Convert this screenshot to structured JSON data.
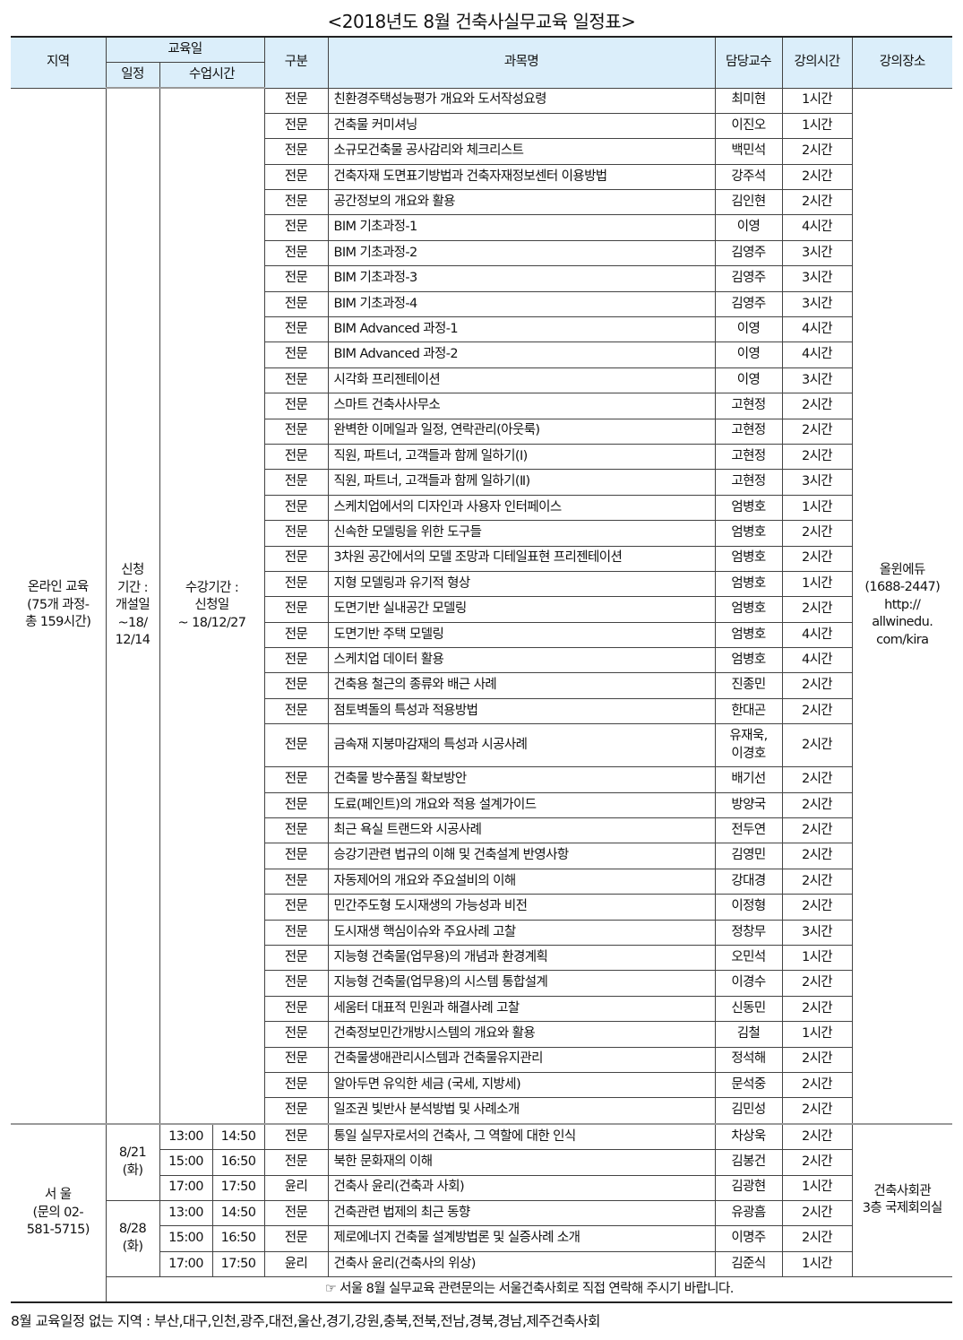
{
  "title": "<2018년도 8월 건축사실무교육 일정표>",
  "headers": {
    "region": "지역",
    "edu_day": "교육일",
    "schedule": "일정",
    "class_time": "수업시간",
    "category": "구분",
    "course": "과목명",
    "instructor": "담당교수",
    "hours": "강의시간",
    "venue": "강의장소"
  },
  "online": {
    "region": "온라인 교육\n(75개 과정-\n총 159시간)",
    "schedule": "신청\n기간 :\n개설일\n~18/\n12/14",
    "class_time": "수강기간 :\n신청일\n~ 18/12/27",
    "venue": "올윈에듀\n(1688-2447)\nhttp://\nallwinedu.\ncom/kira",
    "rows": [
      {
        "cat": "전문",
        "course": "친환경주택성능평가 개요와 도서작성요령",
        "inst": "최미현",
        "hours": "1시간"
      },
      {
        "cat": "전문",
        "course": "건축물 커미셔닝",
        "inst": "이진오",
        "hours": "1시간"
      },
      {
        "cat": "전문",
        "course": "소규모건축물 공사감리와 체크리스트",
        "inst": "백민석",
        "hours": "2시간"
      },
      {
        "cat": "전문",
        "course": "건축자재 도면표기방법과 건축자재정보센터 이용방법",
        "inst": "강주석",
        "hours": "2시간"
      },
      {
        "cat": "전문",
        "course": "공간정보의 개요와 활용",
        "inst": "김인현",
        "hours": "2시간"
      },
      {
        "cat": "전문",
        "course": "BIM 기초과정-1",
        "inst": "이영",
        "hours": "4시간"
      },
      {
        "cat": "전문",
        "course": "BIM 기초과정-2",
        "inst": "김영주",
        "hours": "3시간"
      },
      {
        "cat": "전문",
        "course": "BIM 기초과정-3",
        "inst": "김영주",
        "hours": "3시간"
      },
      {
        "cat": "전문",
        "course": "BIM 기초과정-4",
        "inst": "김영주",
        "hours": "3시간"
      },
      {
        "cat": "전문",
        "course": "BIM Advanced 과정-1",
        "inst": "이영",
        "hours": "4시간"
      },
      {
        "cat": "전문",
        "course": "BIM Advanced 과정-2",
        "inst": "이영",
        "hours": "4시간"
      },
      {
        "cat": "전문",
        "course": "시각화 프리젠테이션",
        "inst": "이영",
        "hours": "3시간"
      },
      {
        "cat": "전문",
        "course": "스마트 건축사사무소",
        "inst": "고현정",
        "hours": "2시간"
      },
      {
        "cat": "전문",
        "course": "완벽한 이메일과 일정, 연락관리(아웃룩)",
        "inst": "고현정",
        "hours": "2시간"
      },
      {
        "cat": "전문",
        "course": "직원, 파트너, 고객들과 함께 일하기(Ⅰ)",
        "inst": "고현정",
        "hours": "2시간"
      },
      {
        "cat": "전문",
        "course": "직원, 파트너, 고객들과 함께 일하기(Ⅱ)",
        "inst": "고현정",
        "hours": "3시간"
      },
      {
        "cat": "전문",
        "course": "스케치업에서의 디자인과 사용자 인터페이스",
        "inst": "엄병호",
        "hours": "1시간"
      },
      {
        "cat": "전문",
        "course": "신속한 모델링을 위한 도구들",
        "inst": "엄병호",
        "hours": "2시간"
      },
      {
        "cat": "전문",
        "course": "3차원 공간에서의 모델 조망과 디테일표현 프리젠테이션",
        "inst": "엄병호",
        "hours": "2시간"
      },
      {
        "cat": "전문",
        "course": "지형 모델링과 유기적 형상",
        "inst": "엄병호",
        "hours": "1시간"
      },
      {
        "cat": "전문",
        "course": "도면기반 실내공간 모델링",
        "inst": "엄병호",
        "hours": "2시간"
      },
      {
        "cat": "전문",
        "course": "도면기반 주택 모델링",
        "inst": "엄병호",
        "hours": "4시간"
      },
      {
        "cat": "전문",
        "course": "스케치업 데이터 활용",
        "inst": "엄병호",
        "hours": "4시간"
      },
      {
        "cat": "전문",
        "course": "건축용 철근의 종류와 배근 사례",
        "inst": "진종민",
        "hours": "2시간"
      },
      {
        "cat": "전문",
        "course": "점토벽돌의 특성과 적용방법",
        "inst": "한대곤",
        "hours": "2시간"
      },
      {
        "cat": "전문",
        "course": "금속재 지붕마감재의 특성과 시공사례",
        "inst": "유재욱,\n이경호",
        "hours": "2시간"
      },
      {
        "cat": "전문",
        "course": "건축물 방수품질 확보방안",
        "inst": "배기선",
        "hours": "2시간"
      },
      {
        "cat": "전문",
        "course": "도료(페인트)의 개요와 적용 설계가이드",
        "inst": "방양국",
        "hours": "2시간"
      },
      {
        "cat": "전문",
        "course": "최근 욕실 트랜드와 시공사례",
        "inst": "전두연",
        "hours": "2시간"
      },
      {
        "cat": "전문",
        "course": "승강기관련 법규의 이해 및 건축설계 반영사항",
        "inst": "김영민",
        "hours": "2시간"
      },
      {
        "cat": "전문",
        "course": "자동제어의 개요와 주요설비의 이해",
        "inst": "강대경",
        "hours": "2시간"
      },
      {
        "cat": "전문",
        "course": "민간주도형 도시재생의 가능성과 비전",
        "inst": "이정형",
        "hours": "2시간"
      },
      {
        "cat": "전문",
        "course": "도시재생 핵심이슈와 주요사례 고찰",
        "inst": "정창무",
        "hours": "3시간"
      },
      {
        "cat": "전문",
        "course": "지능형 건축물(업무용)의 개념과 환경계획",
        "inst": "오민석",
        "hours": "1시간"
      },
      {
        "cat": "전문",
        "course": "지능형 건축물(업무용)의 시스템 통합설계",
        "inst": "이경수",
        "hours": "2시간"
      },
      {
        "cat": "전문",
        "course": "세움터 대표적 민원과 해결사례 고찰",
        "inst": "신동민",
        "hours": "2시간"
      },
      {
        "cat": "전문",
        "course": "건축정보민간개방시스템의 개요와 활용",
        "inst": "김철",
        "hours": "1시간"
      },
      {
        "cat": "전문",
        "course": "건축물생애관리시스템과 건축물유지관리",
        "inst": "정석해",
        "hours": "2시간"
      },
      {
        "cat": "전문",
        "course": "알아두면 유익한 세금 (국세, 지방세)",
        "inst": "문석중",
        "hours": "2시간"
      },
      {
        "cat": "전문",
        "course": "일조권 빛반사 분석방법 및 사례소개",
        "inst": "김민성",
        "hours": "2시간"
      }
    ]
  },
  "seoul": {
    "region": "서 울\n(문의 02-\n581-5715)",
    "venue": "건축사회관\n3층 국제회의실",
    "days": [
      {
        "date": "8/21\n(화)",
        "rows": [
          {
            "start": "13:00",
            "end": "14:50",
            "cat": "전문",
            "course": "통일 실무자로서의 건축사, 그 역할에 대한 인식",
            "inst": "차상욱",
            "hours": "2시간"
          },
          {
            "start": "15:00",
            "end": "16:50",
            "cat": "전문",
            "course": "북한 문화재의 이해",
            "inst": "김봉건",
            "hours": "2시간"
          },
          {
            "start": "17:00",
            "end": "17:50",
            "cat": "윤리",
            "course": "건축사 윤리(건축과 사회)",
            "inst": "김광현",
            "hours": "1시간"
          }
        ]
      },
      {
        "date": "8/28\n(화)",
        "rows": [
          {
            "start": "13:00",
            "end": "14:50",
            "cat": "전문",
            "course": "건축관련 법제의 최근 동향",
            "inst": "유광흠",
            "hours": "2시간"
          },
          {
            "start": "15:00",
            "end": "16:50",
            "cat": "전문",
            "course": "제로에너지 건축물 설계방법론 및 실증사례 소개",
            "inst": "이명주",
            "hours": "2시간"
          },
          {
            "start": "17:00",
            "end": "17:50",
            "cat": "윤리",
            "course": "건축사 윤리(건축사의 위상)",
            "inst": "김준식",
            "hours": "1시간"
          }
        ]
      }
    ],
    "note": "☞ 서울 8월 실무교육 관련문의는 서울건축사회로 직접 연락해 주시기 바랍니다."
  },
  "footer": "8월  교육일정  없는  지역 :  부산,대구,인천,광주,대전,울산,경기,강원,충북,전북,전남,경북,경남,제주건축사회"
}
